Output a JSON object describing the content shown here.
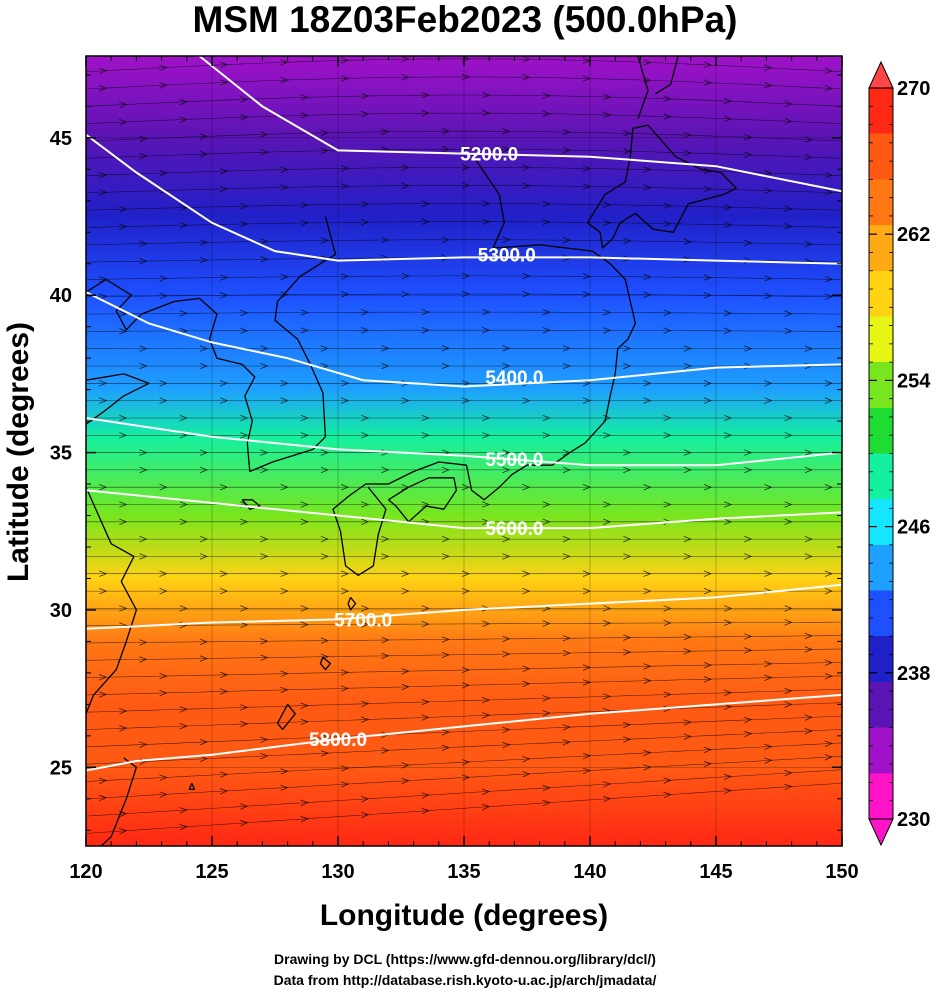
{
  "title": "MSM 18Z03Feb2023 (500.0hPa)",
  "xlabel": "Longitude (degrees)",
  "ylabel": "Latitude  (degrees)",
  "credits": [
    "Drawing by DCL (https://www.gfd-dennou.org/library/dcl/)",
    "Data from http://database.rish.kyoto-u.ac.jp/arch/jmadata/"
  ],
  "chart_data": {
    "type": "map",
    "xlim": [
      120,
      150
    ],
    "ylim": [
      22.5,
      47.6
    ],
    "x_ticks": [
      120,
      125,
      130,
      135,
      140,
      145,
      150
    ],
    "x_tick_labels": [
      "120",
      "125",
      "130",
      "135",
      "140",
      "145",
      "150"
    ],
    "y_ticks": [
      25,
      30,
      35,
      40,
      45
    ],
    "y_tick_labels": [
      "25",
      "30",
      "35",
      "40",
      "45"
    ],
    "grid": true,
    "colorbar": {
      "min": 230,
      "max": 270,
      "ticks": [
        230,
        238,
        246,
        254,
        262,
        270
      ],
      "tick_labels": [
        "230",
        "238",
        "246",
        "254",
        "262",
        "270"
      ],
      "extend": "both",
      "low_color": "#ff14c8",
      "high_color": "#ff4646",
      "colors": [
        "#ff14c8",
        "#a012c8",
        "#5a14b4",
        "#2020c8",
        "#1e50ff",
        "#1ea0ff",
        "#14e6ff",
        "#14f0a0",
        "#1edc32",
        "#78e61e",
        "#e6f514",
        "#ffd214",
        "#ffaa14",
        "#ff7814",
        "#ff5a14",
        "#ff2814"
      ]
    },
    "temperature_field": [
      {
        "lat": 47.6,
        "value": 234.5
      },
      {
        "lat": 45.0,
        "value": 235.5
      },
      {
        "lat": 42.5,
        "value": 238.0
      },
      {
        "lat": 40.0,
        "value": 240.0
      },
      {
        "lat": 37.0,
        "value": 243.5
      },
      {
        "lat": 35.5,
        "value": 249.5
      },
      {
        "lat": 33.0,
        "value": 254.5
      },
      {
        "lat": 31.0,
        "value": 259.5
      },
      {
        "lat": 29.0,
        "value": 262.5
      },
      {
        "lat": 27.0,
        "value": 265.5
      },
      {
        "lat": 25.0,
        "value": 267.0
      },
      {
        "lat": 22.5,
        "value": 267.5
      }
    ],
    "contours": [
      {
        "label": "5200.0",
        "label_at": [
          136.0,
          44.5
        ],
        "points": [
          [
            124.5,
            47.6
          ],
          [
            127.0,
            46.0
          ],
          [
            130.0,
            44.6
          ],
          [
            135.0,
            44.5
          ],
          [
            140.0,
            44.4
          ],
          [
            145.0,
            44.1
          ],
          [
            150.0,
            43.3
          ]
        ]
      },
      {
        "label": "5300.0",
        "label_at": [
          136.7,
          41.3
        ],
        "points": [
          [
            120.0,
            45.1
          ],
          [
            122.0,
            43.9
          ],
          [
            125.0,
            42.3
          ],
          [
            127.5,
            41.4
          ],
          [
            130.0,
            41.1
          ],
          [
            135.0,
            41.2
          ],
          [
            140.0,
            41.2
          ],
          [
            145.0,
            41.1
          ],
          [
            150.0,
            41.0
          ]
        ]
      },
      {
        "label": "5400.0",
        "label_at": [
          137.0,
          37.4
        ],
        "points": [
          [
            120.0,
            40.1
          ],
          [
            122.5,
            39.1
          ],
          [
            125.0,
            38.5
          ],
          [
            128.0,
            38.0
          ],
          [
            131.0,
            37.3
          ],
          [
            135.0,
            37.1
          ],
          [
            140.0,
            37.3
          ],
          [
            145.0,
            37.7
          ],
          [
            150.0,
            37.8
          ]
        ]
      },
      {
        "label": "5500.0",
        "label_at": [
          137.0,
          34.8
        ],
        "points": [
          [
            120.0,
            36.1
          ],
          [
            125.0,
            35.5
          ],
          [
            130.0,
            35.1
          ],
          [
            135.0,
            34.9
          ],
          [
            140.0,
            34.6
          ],
          [
            145.0,
            34.6
          ],
          [
            150.0,
            35.0
          ]
        ]
      },
      {
        "label": "5600.0",
        "label_at": [
          137.0,
          32.6
        ],
        "points": [
          [
            120.0,
            33.8
          ],
          [
            125.0,
            33.4
          ],
          [
            130.0,
            33.0
          ],
          [
            135.0,
            32.6
          ],
          [
            140.0,
            32.6
          ],
          [
            145.0,
            32.9
          ],
          [
            150.0,
            33.1
          ]
        ]
      },
      {
        "label": "5700.0",
        "label_at": [
          131.0,
          29.7
        ],
        "points": [
          [
            120.0,
            29.4
          ],
          [
            125.0,
            29.6
          ],
          [
            130.0,
            29.7
          ],
          [
            135.0,
            30.0
          ],
          [
            140.0,
            30.2
          ],
          [
            145.0,
            30.4
          ],
          [
            150.0,
            30.8
          ]
        ]
      },
      {
        "label": "5800.0",
        "label_at": [
          130.0,
          25.9
        ],
        "points": [
          [
            120.0,
            24.9
          ],
          [
            122.0,
            25.2
          ],
          [
            125.0,
            25.4
          ],
          [
            130.0,
            25.9
          ],
          [
            135.0,
            26.3
          ],
          [
            140.0,
            26.7
          ],
          [
            145.0,
            27.0
          ],
          [
            150.0,
            27.3
          ]
        ]
      }
    ],
    "coastlines": [
      [
        [
          135.3,
          44.5
        ],
        [
          136.4,
          43.2
        ],
        [
          136.6,
          42.3
        ],
        [
          136.1,
          41.4
        ]
      ],
      [
        [
          136.2,
          41.5
        ],
        [
          138.0,
          41.6
        ],
        [
          140.1,
          41.4
        ],
        [
          140.8,
          41.0
        ],
        [
          141.4,
          40.5
        ],
        [
          141.6,
          39.8
        ],
        [
          141.8,
          39.1
        ],
        [
          141.5,
          38.6
        ],
        [
          141.1,
          38.3
        ],
        [
          141.0,
          37.5
        ],
        [
          140.8,
          36.8
        ],
        [
          140.6,
          36.0
        ],
        [
          139.8,
          35.3
        ],
        [
          139.2,
          35.0
        ],
        [
          138.5,
          34.6
        ],
        [
          137.5,
          34.6
        ],
        [
          136.9,
          34.3
        ],
        [
          136.4,
          33.9
        ],
        [
          135.8,
          33.5
        ],
        [
          135.3,
          33.8
        ],
        [
          135.1,
          34.6
        ],
        [
          134.0,
          34.7
        ],
        [
          133.0,
          34.4
        ],
        [
          132.0,
          34.0
        ],
        [
          131.1,
          34.0
        ]
      ],
      [
        [
          131.1,
          34.0
        ],
        [
          130.4,
          33.6
        ],
        [
          129.8,
          33.2
        ],
        [
          130.1,
          32.5
        ],
        [
          130.3,
          31.4
        ],
        [
          130.8,
          31.1
        ],
        [
          131.4,
          31.4
        ],
        [
          131.6,
          32.4
        ],
        [
          131.9,
          33.2
        ],
        [
          131.2,
          33.9
        ]
      ],
      [
        [
          132.0,
          33.5
        ],
        [
          132.8,
          33.9
        ],
        [
          133.6,
          34.2
        ],
        [
          134.6,
          34.2
        ],
        [
          134.7,
          33.8
        ],
        [
          134.2,
          33.2
        ],
        [
          133.5,
          33.3
        ],
        [
          132.8,
          32.8
        ],
        [
          132.3,
          33.3
        ],
        [
          132.0,
          33.5
        ]
      ],
      [
        [
          139.9,
          42.3
        ],
        [
          140.4,
          42.0
        ],
        [
          140.5,
          41.5
        ],
        [
          140.9,
          41.8
        ],
        [
          141.2,
          42.3
        ],
        [
          141.8,
          42.6
        ],
        [
          142.5,
          42.1
        ],
        [
          143.3,
          42.0
        ],
        [
          143.9,
          42.9
        ],
        [
          145.3,
          43.2
        ],
        [
          145.8,
          43.4
        ],
        [
          145.2,
          43.9
        ],
        [
          144.4,
          44.0
        ],
        [
          143.4,
          44.4
        ],
        [
          142.3,
          45.4
        ],
        [
          141.7,
          45.3
        ],
        [
          141.6,
          44.4
        ],
        [
          141.4,
          43.6
        ],
        [
          140.6,
          43.2
        ],
        [
          139.9,
          42.3
        ]
      ],
      [
        [
          141.9,
          45.6
        ],
        [
          142.3,
          46.5
        ],
        [
          141.9,
          47.6
        ]
      ],
      [
        [
          143.5,
          47.6
        ],
        [
          143.2,
          46.7
        ],
        [
          142.6,
          46.4
        ]
      ],
      [
        [
          129.5,
          42.5
        ],
        [
          129.9,
          41.3
        ],
        [
          128.5,
          40.6
        ],
        [
          127.6,
          39.8
        ],
        [
          127.5,
          39.2
        ],
        [
          128.4,
          38.6
        ],
        [
          128.9,
          37.8
        ],
        [
          129.4,
          36.9
        ],
        [
          129.5,
          35.5
        ],
        [
          129.0,
          35.1
        ],
        [
          128.2,
          34.9
        ],
        [
          127.4,
          34.7
        ],
        [
          126.5,
          34.4
        ],
        [
          126.4,
          35.3
        ],
        [
          126.6,
          36.0
        ],
        [
          126.3,
          36.8
        ],
        [
          126.7,
          37.4
        ],
        [
          126.2,
          37.8
        ],
        [
          125.2,
          38.0
        ],
        [
          124.9,
          38.6
        ],
        [
          125.2,
          39.4
        ],
        [
          124.5,
          39.9
        ],
        [
          123.5,
          39.8
        ],
        [
          122.2,
          39.4
        ],
        [
          121.6,
          38.9
        ],
        [
          121.2,
          39.5
        ],
        [
          121.8,
          40.0
        ],
        [
          120.8,
          40.5
        ],
        [
          120.0,
          40.1
        ]
      ],
      [
        [
          126.2,
          33.5
        ],
        [
          126.6,
          33.5
        ],
        [
          126.9,
          33.3
        ],
        [
          126.5,
          33.2
        ],
        [
          126.2,
          33.5
        ]
      ],
      [
        [
          120.0,
          37.3
        ],
        [
          121.5,
          37.5
        ],
        [
          122.5,
          37.2
        ],
        [
          121.5,
          36.8
        ],
        [
          120.7,
          36.3
        ],
        [
          120.0,
          35.9
        ],
        [
          119.6,
          35.5
        ]
      ],
      [
        [
          120.0,
          33.9
        ],
        [
          121.0,
          32.1
        ],
        [
          121.9,
          31.7
        ],
        [
          121.4,
          30.9
        ],
        [
          122.0,
          30.0
        ],
        [
          121.6,
          29.0
        ],
        [
          121.2,
          28.1
        ],
        [
          120.3,
          27.3
        ],
        [
          120.0,
          26.7
        ]
      ],
      [
        [
          121.5,
          25.3
        ],
        [
          122.0,
          25.0
        ],
        [
          121.6,
          24.0
        ],
        [
          121.0,
          22.8
        ],
        [
          120.6,
          22.5
        ]
      ],
      [
        [
          128.0,
          27.0
        ],
        [
          128.3,
          26.7
        ],
        [
          127.8,
          26.2
        ],
        [
          127.6,
          26.4
        ],
        [
          128.0,
          27.0
        ]
      ],
      [
        [
          129.4,
          28.5
        ],
        [
          129.7,
          28.3
        ],
        [
          129.5,
          28.1
        ],
        [
          129.3,
          28.3
        ],
        [
          129.4,
          28.5
        ]
      ],
      [
        [
          130.5,
          30.4
        ],
        [
          130.7,
          30.2
        ],
        [
          130.5,
          30.0
        ],
        [
          130.4,
          30.2
        ],
        [
          130.5,
          30.4
        ]
      ],
      [
        [
          124.2,
          24.5
        ],
        [
          124.3,
          24.3
        ],
        [
          124.1,
          24.3
        ],
        [
          124.2,
          24.5
        ]
      ]
    ],
    "wind": "streamlines from west-southwest to east, arrowheads pointing east"
  }
}
